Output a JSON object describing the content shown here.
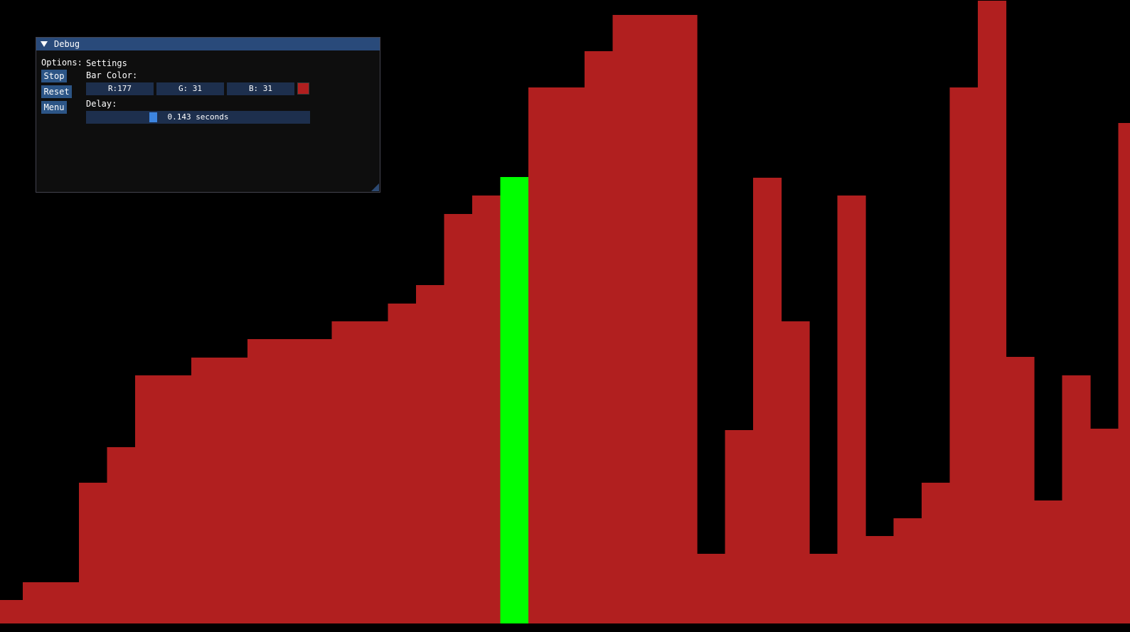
{
  "visualization": {
    "values": [
      33,
      58,
      58,
      198,
      248,
      349,
      349,
      374,
      374,
      400,
      400,
      400,
      425,
      425,
      450,
      476,
      576,
      602,
      628,
      754,
      754,
      805,
      856,
      856,
      856,
      98,
      272,
      627,
      425,
      98,
      602,
      123,
      148,
      198,
      754,
      876,
      375,
      173,
      349,
      274,
      704
    ],
    "max_value": 876,
    "highlight_index": 18,
    "bar_color": "#b11f1f",
    "highlight_color": "#00ff00"
  },
  "debug_window": {
    "title": "Debug",
    "options_label": "Options:",
    "buttons": {
      "stop": "Stop",
      "reset": "Reset",
      "menu": "Menu"
    },
    "settings": {
      "heading": "Settings",
      "bar_color_label": "Bar Color:",
      "r_text": "R:177",
      "g_text": "G: 31",
      "b_text": "B: 31",
      "swatch_color": "#b11f1f",
      "delay_label": "Delay:",
      "delay_value": 0.143,
      "delay_text": "0.143 seconds",
      "delay_slider_position": 0.29
    }
  }
}
